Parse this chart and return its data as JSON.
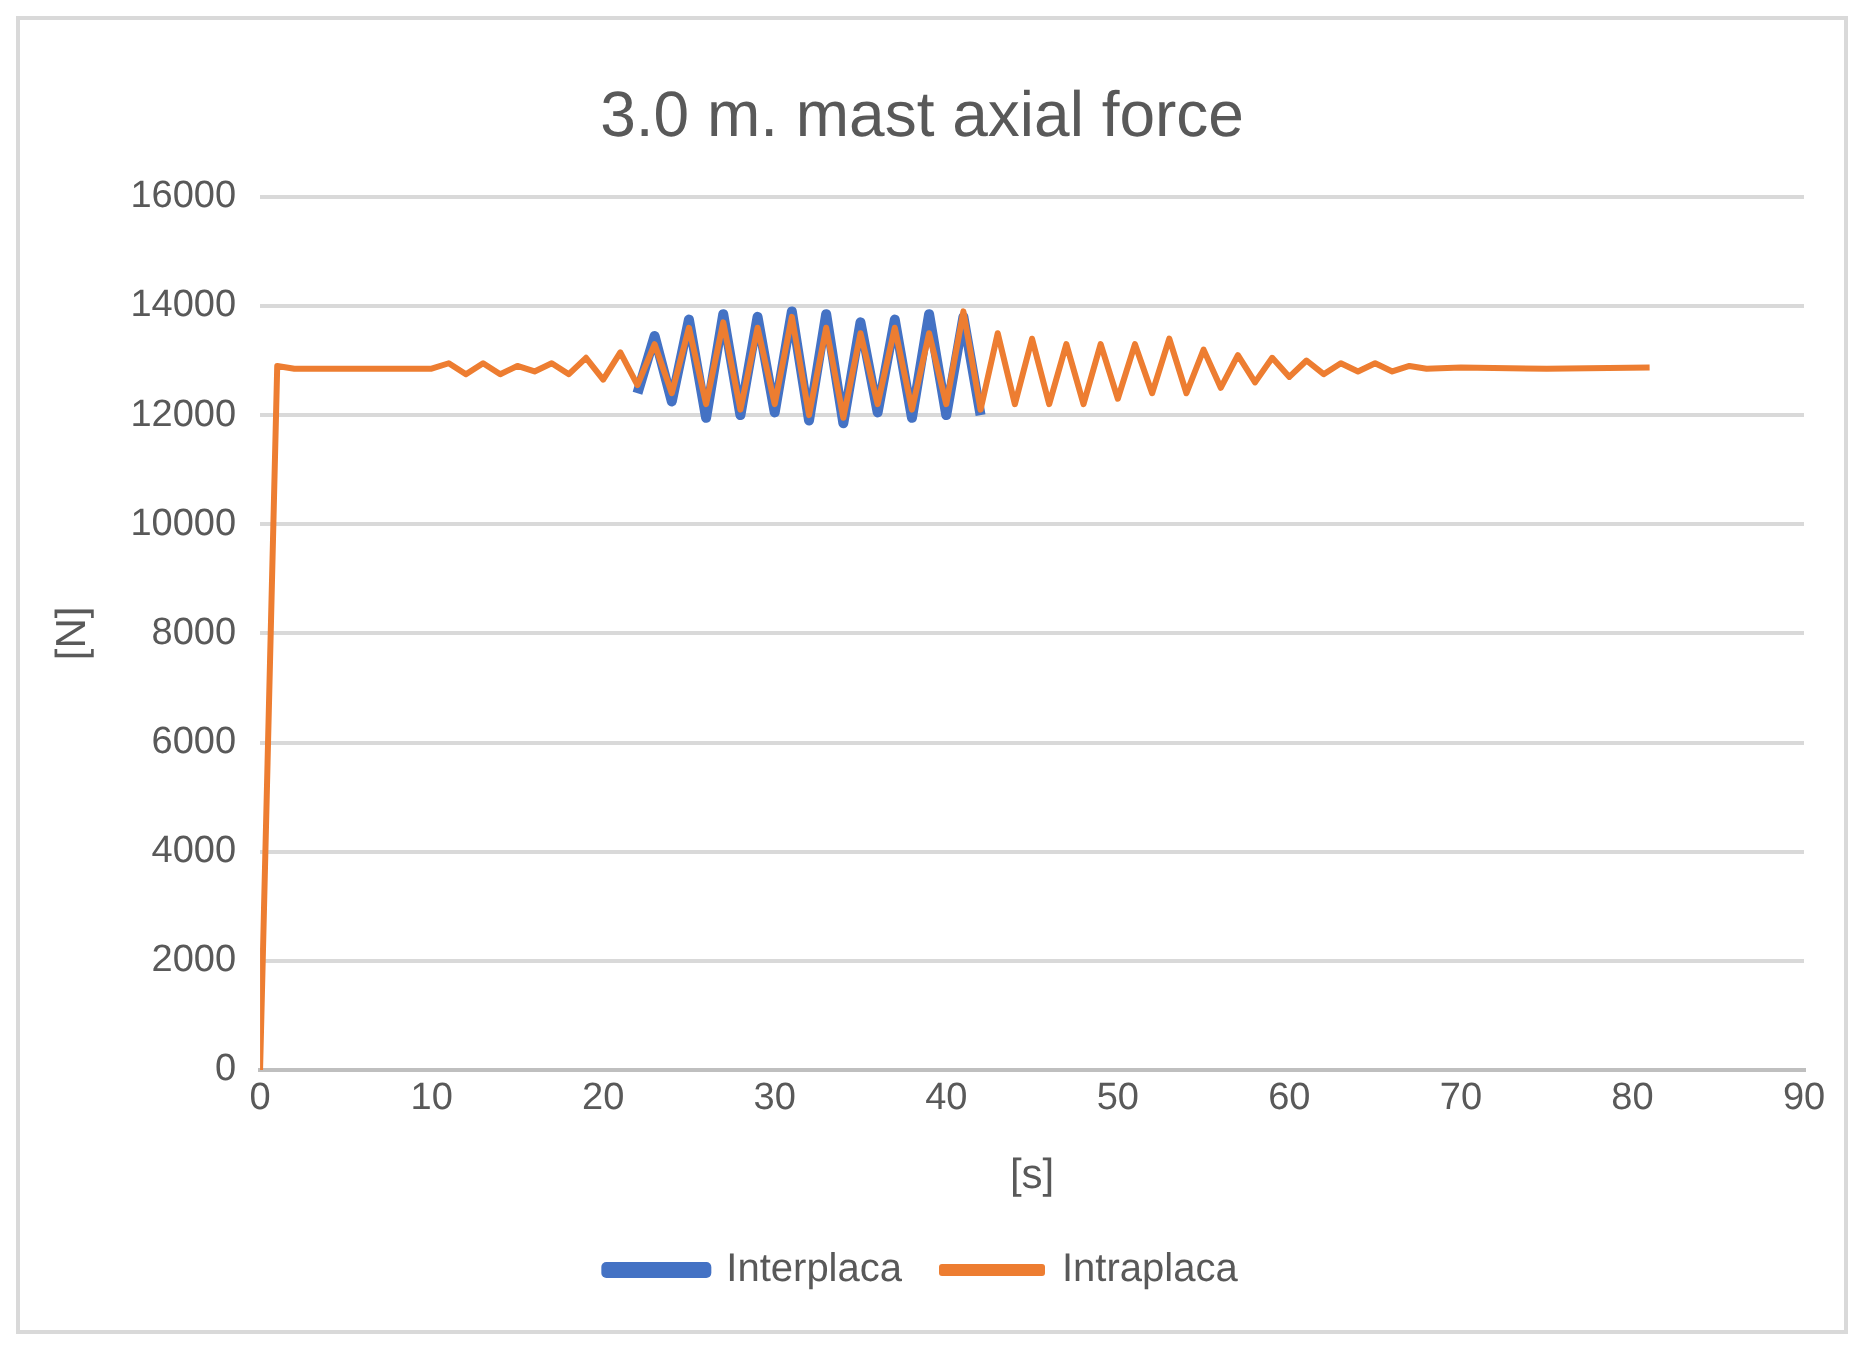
{
  "chart_data": {
    "type": "line",
    "title": "3.0 m. mast axial force",
    "xlabel": "[s]",
    "ylabel": "[N]",
    "xlim": [
      0,
      90
    ],
    "xticks": [
      0,
      10,
      20,
      30,
      40,
      50,
      60,
      70,
      80,
      90
    ],
    "ylim": [
      0,
      16000
    ],
    "yticks": [
      0,
      2000,
      4000,
      6000,
      8000,
      10000,
      12000,
      14000,
      16000
    ],
    "grid": "y",
    "legend": "bottom",
    "marker": "none",
    "line_style": "solid",
    "series": [
      {
        "name": "Interplaca",
        "color": "#4472c4",
        "x": [
          22,
          23,
          24,
          25,
          26,
          27,
          28,
          29,
          30,
          31,
          32,
          33,
          34,
          35,
          36,
          37,
          38,
          39,
          40,
          41,
          42
        ],
        "values": [
          12400,
          13450,
          12250,
          13750,
          11950,
          13850,
          12000,
          13800,
          12050,
          13900,
          11900,
          13850,
          11850,
          13700,
          12050,
          13750,
          11950,
          13850,
          12000,
          13800,
          12000
        ]
      },
      {
        "name": "Intraplaca",
        "color": "#ed7d31",
        "x": [
          0,
          1,
          2,
          5,
          10,
          11,
          12,
          13,
          14,
          15,
          16,
          17,
          18,
          19,
          20,
          21,
          22,
          23,
          24,
          25,
          26,
          27,
          28,
          29,
          30,
          31,
          32,
          33,
          34,
          35,
          36,
          37,
          38,
          39,
          40,
          41,
          42,
          43,
          44,
          45,
          46,
          47,
          48,
          49,
          50,
          51,
          52,
          53,
          54,
          55,
          56,
          57,
          58,
          59,
          60,
          61,
          62,
          63,
          64,
          65,
          66,
          67,
          68,
          70,
          75,
          81
        ],
        "values": [
          0,
          12900,
          12850,
          12850,
          12850,
          12950,
          12750,
          12950,
          12750,
          12900,
          12800,
          12950,
          12750,
          13050,
          12650,
          13150,
          12550,
          13300,
          12400,
          13600,
          12200,
          13700,
          12100,
          13600,
          12200,
          13800,
          12000,
          13600,
          11950,
          13500,
          12200,
          13600,
          12100,
          13500,
          12200,
          13900,
          12100,
          13500,
          12200,
          13400,
          12200,
          13300,
          12200,
          13300,
          12300,
          13300,
          12400,
          13400,
          12400,
          13200,
          12500,
          13100,
          12600,
          13050,
          12700,
          13000,
          12750,
          12950,
          12800,
          12950,
          12800,
          12900,
          12850,
          12870,
          12850,
          12870
        ]
      }
    ]
  }
}
